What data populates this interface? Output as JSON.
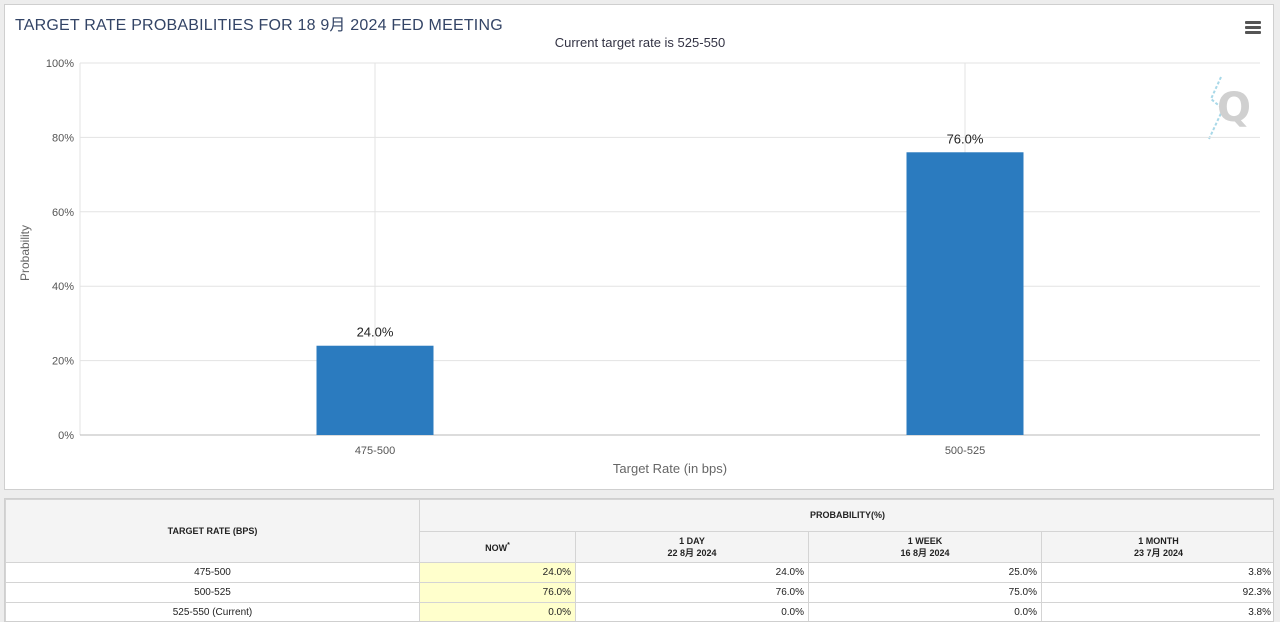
{
  "header": {
    "title": "TARGET RATE PROBABILITIES FOR 18 9月 2024 FED MEETING",
    "subtitle": "Current target rate is 525-550"
  },
  "chart_data": {
    "type": "bar",
    "categories": [
      "475-500",
      "500-525"
    ],
    "values": [
      24.0,
      76.0
    ],
    "data_labels": [
      "24.0%",
      "76.0%"
    ],
    "xlabel": "Target Rate (in bps)",
    "ylabel": "Probability",
    "ylim": [
      0,
      100
    ],
    "y_ticks": [
      0,
      20,
      40,
      60,
      80,
      100
    ],
    "y_tick_labels": [
      "0%",
      "20%",
      "40%",
      "60%",
      "80%",
      "100%"
    ],
    "bar_color": "#2b7bbf",
    "grid": true,
    "legend": "none"
  },
  "table": {
    "target_header": "TARGET RATE (BPS)",
    "group_header": "PROBABILITY(%)",
    "columns": [
      {
        "label": "NOW",
        "mark": "*",
        "date": ""
      },
      {
        "label": "1 DAY",
        "date": "22 8月 2024"
      },
      {
        "label": "1 WEEK",
        "date": "16 8月 2024"
      },
      {
        "label": "1 MONTH",
        "date": "23 7月 2024"
      }
    ],
    "rows": [
      {
        "rate": "475-500",
        "now": "24.0%",
        "day": "24.0%",
        "week": "25.0%",
        "month": "3.8%"
      },
      {
        "rate": "500-525",
        "now": "76.0%",
        "day": "76.0%",
        "week": "75.0%",
        "month": "92.3%"
      },
      {
        "rate": "525-550 (Current)",
        "now": "0.0%",
        "day": "0.0%",
        "week": "0.0%",
        "month": "3.8%"
      }
    ]
  },
  "colors": {
    "accent": "#2b7bbf",
    "now_highlight": "#ffffcc",
    "title": "#334466"
  },
  "icons": {
    "menu": "hamburger-menu-icon",
    "watermark": "quikstrike-logo-icon"
  }
}
